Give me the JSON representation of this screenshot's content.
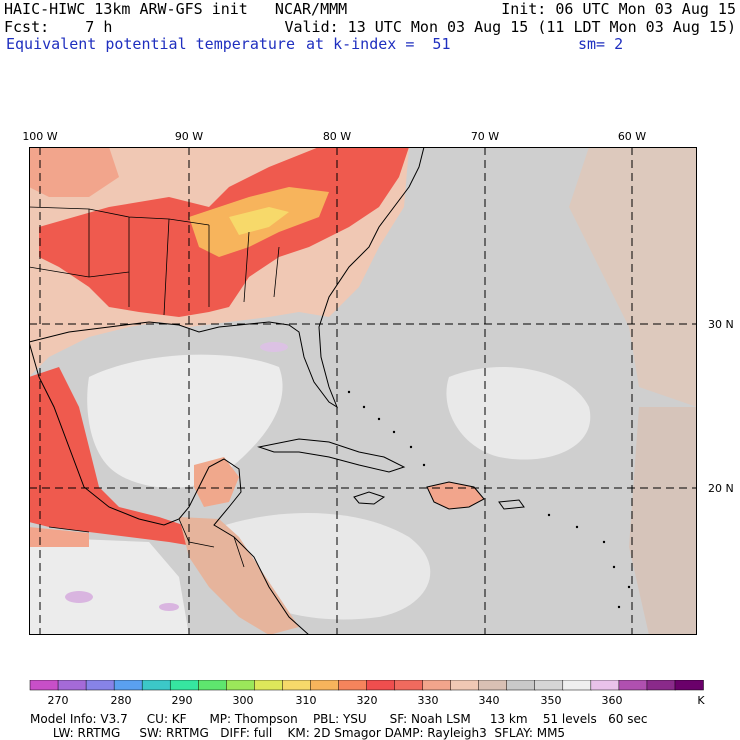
{
  "header": {
    "title": "HAIC-HIWC 13km ARW-GFS init   NCAR/MMM",
    "init": "Init: 06 UTC Mon 03 Aug 15",
    "fcst": "Fcst:    7 h",
    "valid": "Valid: 13 UTC Mon 03 Aug 15 (11 LDT Mon 03 Aug 15)",
    "field": "Equivalent potential temperature",
    "level": "at k-index =  51",
    "smoothing": "sm= 2"
  },
  "map": {
    "lon_labels": [
      "100 W",
      "90 W",
      "80 W",
      "70 W",
      "60 W"
    ],
    "lat_labels": [
      "30 N",
      "20 N"
    ]
  },
  "colorbar": {
    "colors": [
      "#c84fc8",
      "#a56ad8",
      "#8783e8",
      "#5aa0f0",
      "#3cc8c8",
      "#36e6a0",
      "#5ee66e",
      "#9be85a",
      "#dde85a",
      "#f7d96a",
      "#f7b45c",
      "#f6845c",
      "#ef4e4e",
      "#f06a5e",
      "#f2a58c",
      "#f0c8b4",
      "#d9c0b4",
      "#c9c9c9",
      "#d6d6d6",
      "#efefef",
      "#e9c2ea",
      "#b050b0",
      "#8a2a8a",
      "#6a006a"
    ],
    "tick_labels": [
      "270",
      "280",
      "290",
      "300",
      "310",
      "320",
      "330",
      "340",
      "350",
      "360",
      "K"
    ]
  },
  "footer": {
    "line1": "Model Info: V3.7     CU: KF      MP: Thompson    PBL: YSU      SF: Noah LSM     13 km    51 levels   60 sec",
    "line2": "      LW: RRTMG     SW: RRTMG   DIFF: full    KM: 2D Smagor DAMP: Rayleigh3  SFLAY: MM5"
  }
}
